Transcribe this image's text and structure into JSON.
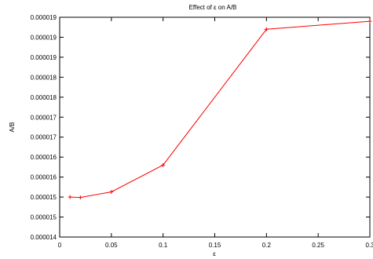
{
  "chart_data": {
    "type": "line",
    "title": "Effect of ε on A/B",
    "xlabel": "ε",
    "ylabel": "A/B",
    "xlim": [
      0,
      0.3
    ],
    "ylim": [
      1.4e-05,
      1.95e-05
    ],
    "grid": false,
    "legend": "none",
    "x_ticks": [
      0,
      0.05,
      0.1,
      0.15,
      0.2,
      0.25,
      0.3
    ],
    "x_tick_labels": [
      "0",
      "0.05",
      "0.1",
      "0.15",
      "0.2",
      "0.25",
      "0.3"
    ],
    "y_ticks": [
      1.4e-05,
      1.45e-05,
      1.5e-05,
      1.55e-05,
      1.6e-05,
      1.65e-05,
      1.7e-05,
      1.75e-05,
      1.8e-05,
      1.85e-05,
      1.9e-05,
      1.95e-05
    ],
    "y_tick_labels": [
      "0.000014",
      "0.000015",
      "0.000015",
      "0.000016",
      "0.000016",
      "0.000017",
      "0.000017",
      "0.000018",
      "0.000018",
      "0.000019",
      "0.000019",
      "0.000019"
    ],
    "series": [
      {
        "color": "#ff0000",
        "marker": "plus",
        "x": [
          0.01,
          0.02,
          0.05,
          0.1,
          0.2,
          0.3
        ],
        "y": [
          1.5e-05,
          1.499e-05,
          1.513e-05,
          1.58e-05,
          1.92e-05,
          1.94e-05
        ]
      }
    ]
  }
}
